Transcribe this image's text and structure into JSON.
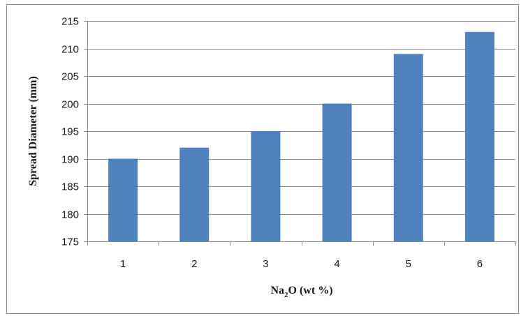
{
  "chart_data": {
    "type": "bar",
    "categories": [
      "1",
      "2",
      "3",
      "4",
      "5",
      "6"
    ],
    "values": [
      190,
      192,
      195,
      200,
      209,
      213
    ],
    "title": "",
    "xlabel": "Na2O (wt %)",
    "xlabel_parts": {
      "pre": "Na",
      "sub": "2",
      "post": "O (wt %)"
    },
    "ylabel": "Spread Diameter (mm)",
    "ylim": [
      175,
      215
    ],
    "yticks": [
      175,
      180,
      185,
      190,
      195,
      200,
      205,
      210,
      215
    ],
    "grid": true,
    "legend": "none",
    "bar_color": "#4f81bd",
    "grid_color": "#8c8c8c"
  }
}
